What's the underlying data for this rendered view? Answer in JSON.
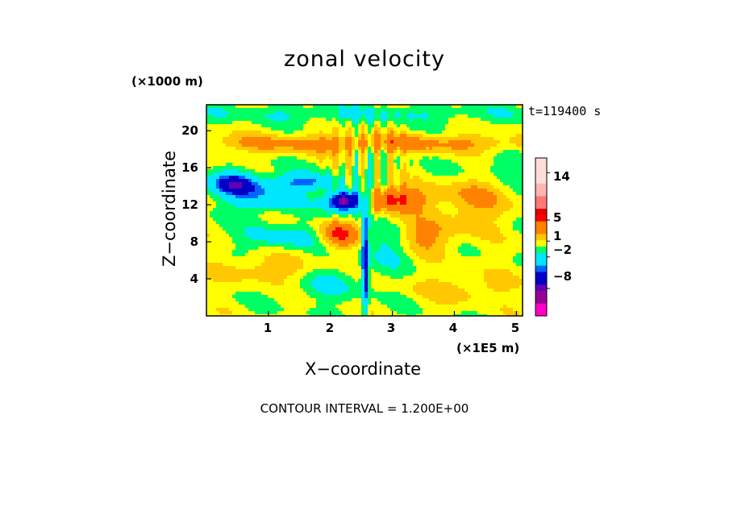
{
  "chart_data": {
    "type": "heatmap",
    "title": "zonal velocity",
    "xlabel": "X−coordinate",
    "ylabel": "Z−coordinate",
    "x_multiplier_label": "(×1E5 m)",
    "y_multiplier_label": "(×1000 m)",
    "time_label": "t=119400 s",
    "contour_interval_label": "CONTOUR INTERVAL = 1.200E+00",
    "xlim": [
      0,
      5.1
    ],
    "ylim": [
      0,
      22.8
    ],
    "xticks": [
      "1",
      "2",
      "3",
      "4",
      "5"
    ],
    "xtick_values": [
      1,
      2,
      3,
      4,
      5
    ],
    "yticks": [
      "4",
      "8",
      "12",
      "16",
      "20"
    ],
    "ytick_values": [
      4,
      8,
      12,
      16,
      20
    ],
    "grid": false,
    "colorbar": {
      "levels": [
        -13.2,
        -12.0,
        -10.8,
        -9.6,
        -8.4,
        -7.2,
        -6.0,
        -4.8,
        -3.6,
        -2.4,
        -1.2,
        0,
        1.2,
        2.4,
        3.6,
        4.8,
        6.0,
        7.2,
        8.4,
        9.6,
        10.8,
        12.0,
        13.2,
        14.4,
        15.6,
        16.8
      ],
      "tick_labels": [
        "14",
        "5",
        "1",
        "−2",
        "−8"
      ],
      "tick_values": [
        14,
        5,
        1,
        -2,
        -8
      ]
    },
    "field_features": [
      {
        "kind": "jet",
        "sign": "negative",
        "x": 2.25,
        "z": 12,
        "peak": -10
      },
      {
        "kind": "jet",
        "sign": "negative",
        "x": 0.45,
        "z": 14,
        "peak": -6
      },
      {
        "kind": "jet",
        "sign": "positive",
        "x": 3.0,
        "z": 12.5,
        "peak": 5
      },
      {
        "kind": "jet",
        "sign": "positive",
        "x": 2.15,
        "z": 8.5,
        "peak": 5
      },
      {
        "kind": "layer",
        "sign": "positive",
        "z": 18.5,
        "peak": 3
      },
      {
        "kind": "layer",
        "sign": "negative",
        "z": 21.5,
        "peak": -1
      }
    ],
    "colors": {
      "magenta": "#ff00c8",
      "purple": "#960096",
      "violet": "#6400b4",
      "navy": "#0000c8",
      "blue": "#0064ff",
      "cyan": "#00e6ff",
      "green": "#00ff64",
      "yellow": "#ffff00",
      "gold": "#ffc800",
      "orange": "#ff8200",
      "red": "#ff0000",
      "darkred": "#e60000",
      "rose": "#ff7878",
      "pink": "#ffb4b4",
      "palepink": "#ffdcd7"
    }
  }
}
